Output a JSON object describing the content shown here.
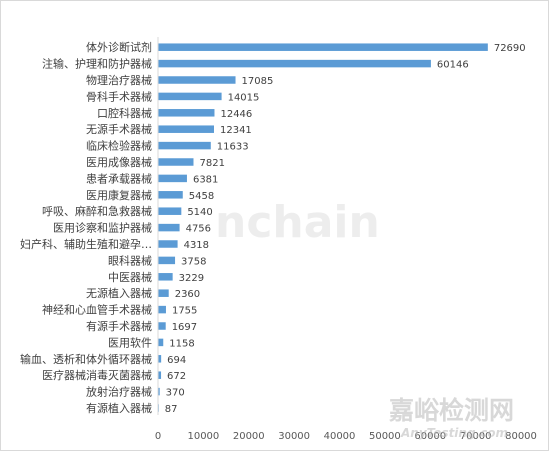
{
  "chart_data": {
    "type": "bar",
    "orientation": "horizontal",
    "categories": [
      "体外诊断试剂",
      "注输、护理和防护器械",
      "物理治疗器械",
      "骨科手术器械",
      "口腔科器械",
      "无源手术器械",
      "临床检验器械",
      "医用成像器械",
      "患者承载器械",
      "医用康复器械",
      "呼吸、麻醉和急救器械",
      "医用诊察和监护器械",
      "妇产科、辅助生殖和避孕…",
      "眼科器械",
      "中医器械",
      "无源植入器械",
      "神经和心血管手术器械",
      "有源手术器械",
      "医用软件",
      "输血、透析和体外循环器械",
      "医疗器械消毒灭菌器械",
      "放射治疗器械",
      "有源植入器械"
    ],
    "values": [
      72690,
      60146,
      17085,
      14015,
      12446,
      12341,
      11633,
      7821,
      6381,
      5458,
      5140,
      4756,
      4318,
      3758,
      3229,
      2360,
      1755,
      1697,
      1158,
      694,
      672,
      370,
      87
    ],
    "value_labels": [
      "72690",
      "60146",
      "17085",
      "14015",
      "12446",
      "12341",
      "11633",
      "7821",
      "6381",
      "5458",
      "5140",
      "4756",
      "4318",
      "3758",
      "3229",
      "2360",
      "1755",
      "1697",
      "1158",
      "694",
      "672",
      "370",
      "87"
    ],
    "xlim": [
      0,
      80000
    ],
    "xticks": [
      0,
      10000,
      20000,
      30000,
      40000,
      50000,
      60000,
      70000,
      80000
    ],
    "xtick_labels": [
      "0",
      "10000",
      "20000",
      "30000",
      "40000",
      "50000",
      "60000",
      "70000",
      "80000"
    ],
    "bar_color": "#5b9bd5",
    "grid": false,
    "legend": "none",
    "title": "",
    "xlabel": "",
    "ylabel": ""
  },
  "watermark": {
    "main": "nchain",
    "sub_cn": "嘉峪检测网",
    "sub_en": "AnyTesting.com",
    "color": "#b8b8b8"
  }
}
